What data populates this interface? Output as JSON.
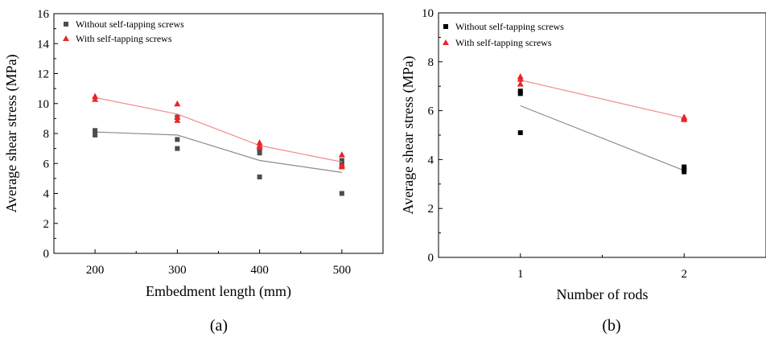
{
  "chart_data": [
    {
      "type": "scatter",
      "panel_label": "(a)",
      "xlabel": "Embedment length (mm)",
      "ylabel": "Average shear stress (MPa)",
      "xlim": [
        150,
        550
      ],
      "ylim": [
        0,
        16
      ],
      "xticks": [
        200,
        300,
        400,
        500
      ],
      "yticks": [
        0,
        2,
        4,
        6,
        8,
        10,
        12,
        14,
        16
      ],
      "grid": false,
      "legend_position": "top-left",
      "series": [
        {
          "name": "Without self-tapping screws",
          "marker": "square",
          "color": "#4d4d4d",
          "points": [
            [
              200,
              8.2
            ],
            [
              200,
              7.9
            ],
            [
              300,
              9.1
            ],
            [
              300,
              7.6
            ],
            [
              300,
              7.0
            ],
            [
              400,
              7.0
            ],
            [
              400,
              6.7
            ],
            [
              400,
              5.1
            ],
            [
              500,
              6.2
            ],
            [
              500,
              5.9
            ],
            [
              500,
              4.0
            ]
          ],
          "trend": [
            [
              200,
              8.1
            ],
            [
              300,
              7.9
            ],
            [
              400,
              6.2
            ],
            [
              500,
              5.4
            ]
          ]
        },
        {
          "name": "With self-tapping screws",
          "marker": "triangle",
          "color": "#e8262a",
          "points": [
            [
              200,
              10.5
            ],
            [
              200,
              10.3
            ],
            [
              300,
              10.0
            ],
            [
              300,
              9.1
            ],
            [
              300,
              8.9
            ],
            [
              400,
              7.4
            ],
            [
              400,
              7.2
            ],
            [
              400,
              7.1
            ],
            [
              500,
              6.6
            ],
            [
              500,
              5.9
            ],
            [
              500,
              5.8
            ]
          ],
          "trend": [
            [
              200,
              10.4
            ],
            [
              300,
              9.3
            ],
            [
              400,
              7.2
            ],
            [
              500,
              6.1
            ]
          ]
        }
      ]
    },
    {
      "type": "scatter",
      "panel_label": "(b)",
      "xlabel": "Number of rods",
      "ylabel": "Average shear stress (MPa)",
      "xlim": [
        0.5,
        2.5
      ],
      "ylim": [
        0,
        10
      ],
      "xticks": [
        1,
        2
      ],
      "yticks": [
        0,
        2,
        4,
        6,
        8,
        10
      ],
      "grid": false,
      "legend_position": "top-left",
      "series": [
        {
          "name": "Without self-tapping screws",
          "marker": "square",
          "color": "#000000",
          "points": [
            [
              1,
              6.8
            ],
            [
              1,
              6.7
            ],
            [
              1,
              5.1
            ],
            [
              2,
              3.7
            ],
            [
              2,
              3.6
            ],
            [
              2,
              3.5
            ]
          ],
          "trend": [
            [
              1,
              6.2
            ],
            [
              2,
              3.55
            ]
          ]
        },
        {
          "name": "With self-tapping screws",
          "marker": "triangle",
          "color": "#e8262a",
          "points": [
            [
              1,
              7.4
            ],
            [
              1,
              7.3
            ],
            [
              1,
              7.1
            ],
            [
              2,
              5.75
            ],
            [
              2,
              5.7
            ],
            [
              2,
              5.65
            ]
          ],
          "trend": [
            [
              1,
              7.25
            ],
            [
              2,
              5.7
            ]
          ]
        }
      ]
    }
  ]
}
